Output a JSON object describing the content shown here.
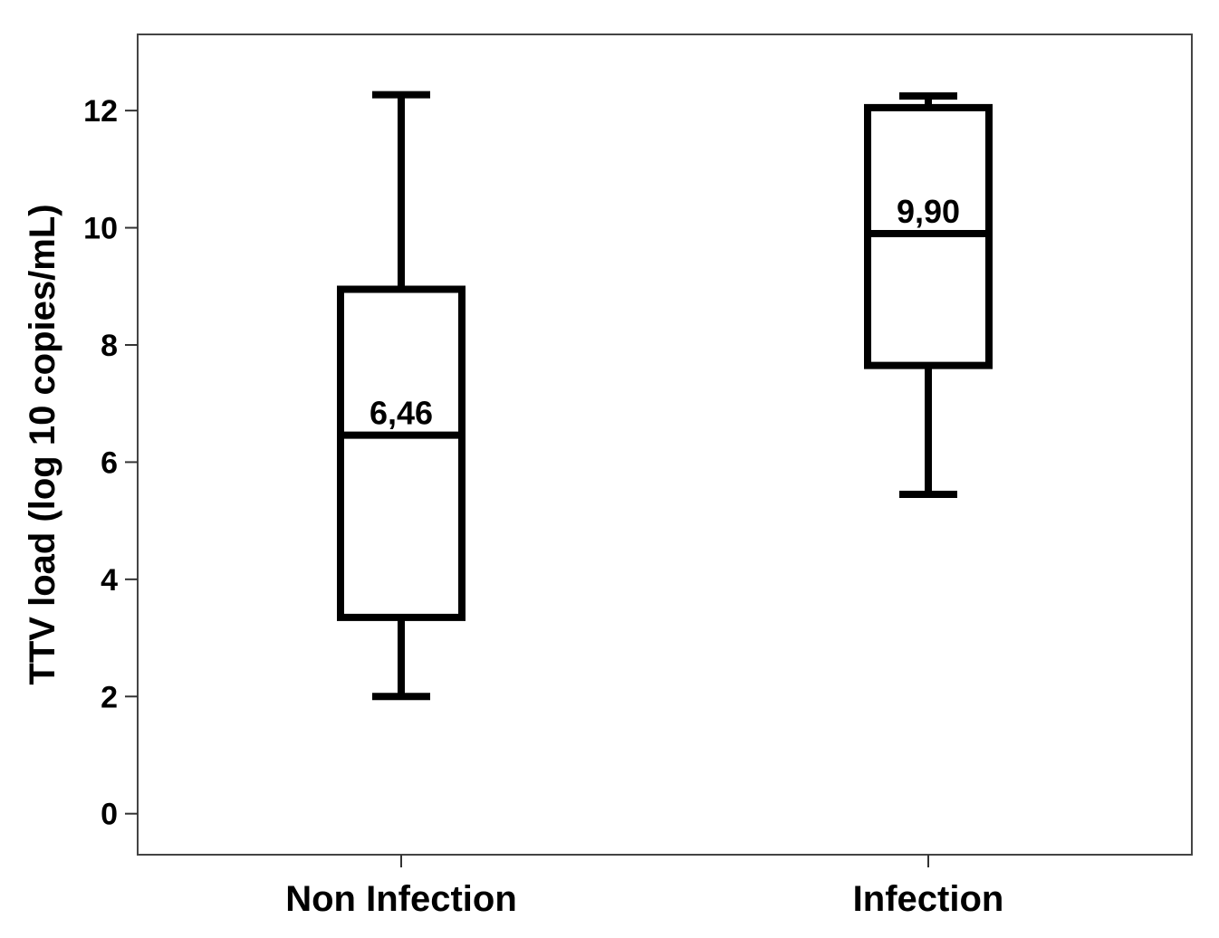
{
  "chart_data": {
    "type": "boxplot",
    "ylabel": "TTV load (log 10 copies/mL)",
    "ylim": [
      -0.7,
      13.3
    ],
    "yticks": [
      0,
      2,
      4,
      6,
      8,
      10,
      12
    ],
    "grid": false,
    "categories": [
      "Non Infection",
      "Infection"
    ],
    "boxes": [
      {
        "category": "Non Infection",
        "whisker_low": 2.0,
        "q1": 3.35,
        "median": 6.46,
        "q3": 8.95,
        "whisker_high": 12.27,
        "median_label": "6,46"
      },
      {
        "category": "Infection",
        "whisker_low": 5.45,
        "q1": 7.65,
        "median": 9.9,
        "q3": 12.05,
        "whisker_high": 12.25,
        "median_label": "9,90"
      }
    ]
  }
}
